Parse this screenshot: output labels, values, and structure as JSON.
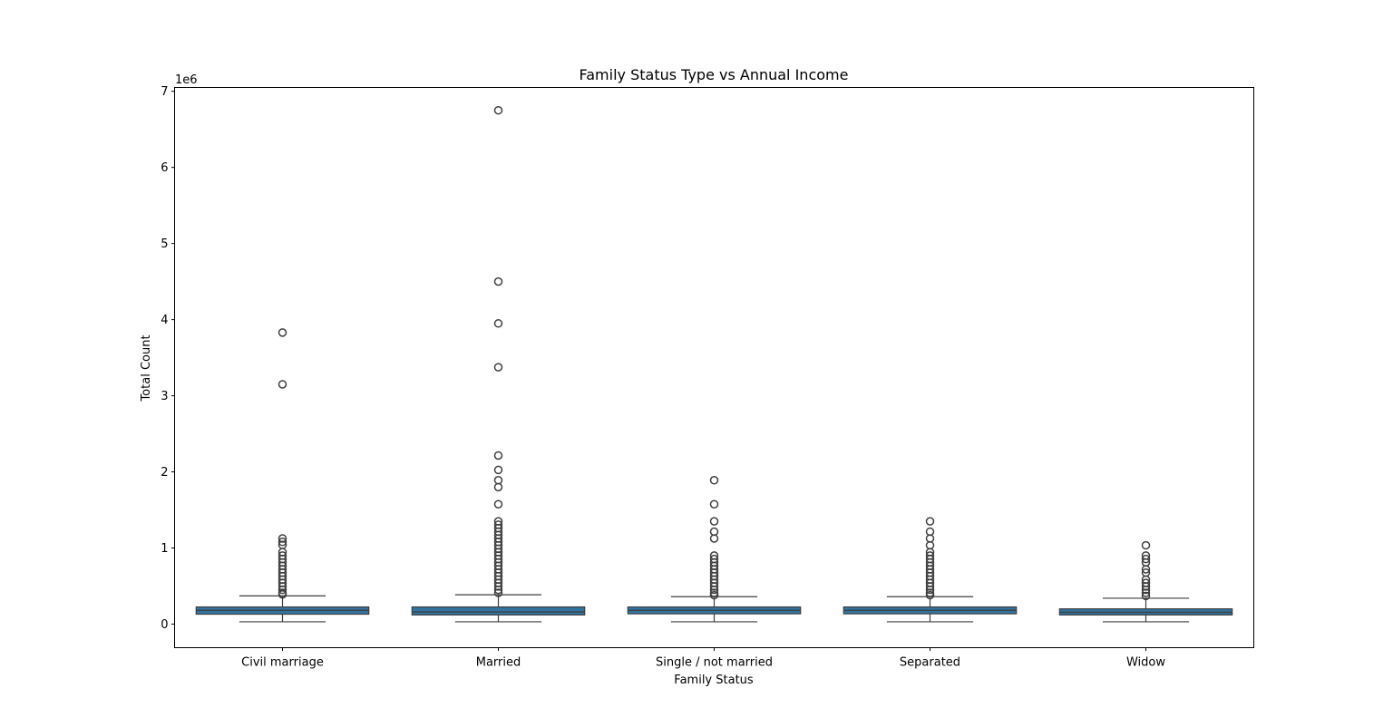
{
  "chart_data": {
    "type": "box",
    "title": "Family Status Type vs Annual Income",
    "xlabel": "Family Status",
    "ylabel": "Total Count",
    "y_scale_label": "1e6",
    "ylim": [
      -0.31,
      7.05
    ],
    "y_ticks": [
      0,
      1,
      2,
      3,
      4,
      5,
      6,
      7
    ],
    "y_tick_multiplier": 1000000,
    "grid": false,
    "box_color": "#3274a1",
    "line_color": "#3f3f3f",
    "categories": [
      "Civil marriage",
      "Married",
      "Single / not married",
      "Separated",
      "Widow"
    ],
    "boxes": [
      {
        "category": "Civil marriage",
        "whisker_low": 0.03,
        "q1": 0.13,
        "median": 0.18,
        "q3": 0.225,
        "whisker_high": 0.37,
        "outliers": [
          3.83,
          3.15,
          1.125,
          1.08,
          1.04,
          0.945,
          0.9,
          0.855,
          0.81,
          0.765,
          0.72,
          0.675,
          0.63,
          0.585,
          0.54,
          0.495,
          0.45,
          0.41,
          0.39
        ]
      },
      {
        "category": "Married",
        "whisker_low": 0.03,
        "q1": 0.12,
        "median": 0.16,
        "q3": 0.225,
        "whisker_high": 0.385,
        "outliers": [
          6.75,
          4.5,
          3.95,
          3.375,
          2.215,
          2.025,
          1.89,
          1.8,
          1.575,
          1.35,
          1.305,
          1.26,
          1.215,
          1.17,
          1.125,
          1.08,
          1.035,
          0.99,
          0.945,
          0.9,
          0.855,
          0.81,
          0.765,
          0.72,
          0.675,
          0.63,
          0.585,
          0.54,
          0.495,
          0.45,
          0.41
        ]
      },
      {
        "category": "Single / not married",
        "whisker_low": 0.03,
        "q1": 0.135,
        "median": 0.18,
        "q3": 0.225,
        "whisker_high": 0.36,
        "outliers": [
          1.89,
          1.575,
          1.35,
          1.215,
          1.125,
          0.9,
          0.855,
          0.81,
          0.765,
          0.72,
          0.675,
          0.63,
          0.585,
          0.54,
          0.495,
          0.45,
          0.41,
          0.38
        ]
      },
      {
        "category": "Separated",
        "whisker_low": 0.03,
        "q1": 0.135,
        "median": 0.18,
        "q3": 0.225,
        "whisker_high": 0.36,
        "outliers": [
          1.35,
          1.215,
          1.125,
          1.035,
          0.945,
          0.9,
          0.855,
          0.81,
          0.765,
          0.72,
          0.675,
          0.63,
          0.585,
          0.54,
          0.495,
          0.45,
          0.41,
          0.38
        ]
      },
      {
        "category": "Widow",
        "whisker_low": 0.03,
        "q1": 0.12,
        "median": 0.155,
        "q3": 0.2,
        "whisker_high": 0.34,
        "outliers": [
          1.035,
          0.9,
          0.855,
          0.81,
          0.72,
          0.675,
          0.585,
          0.54,
          0.495,
          0.45,
          0.41,
          0.37
        ]
      }
    ]
  }
}
